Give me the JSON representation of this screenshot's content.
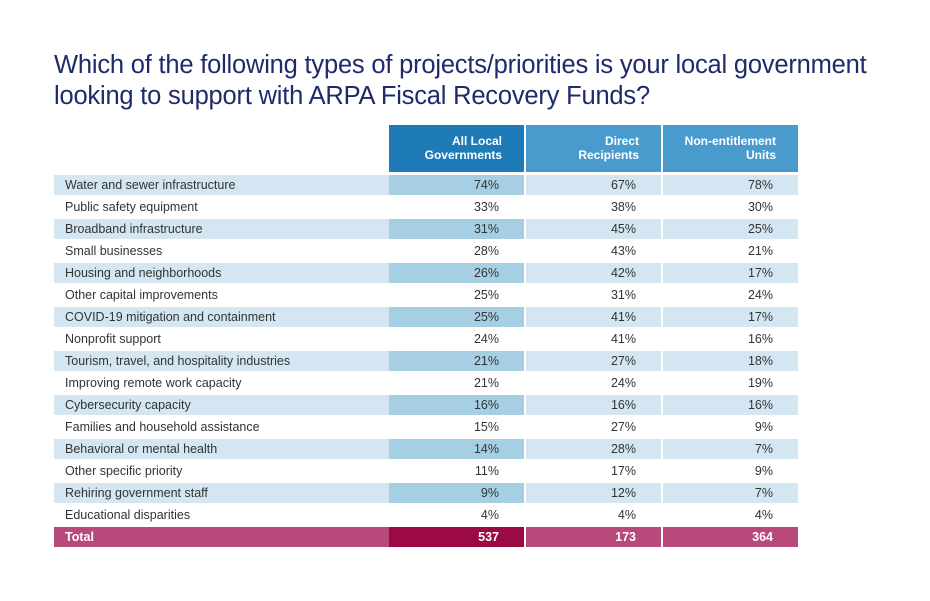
{
  "title": "Which of the following types of projects/priorities is your local government looking to support with ARPA Fiscal Recovery Funds?",
  "table": {
    "columns": [
      "All Local Governments",
      "Direct Recipients",
      "Non-entitlement Units"
    ],
    "columns_lines": [
      [
        "All Local",
        "Governments"
      ],
      [
        "Direct",
        "Recipients"
      ],
      [
        "Non-entitlement",
        "Units"
      ]
    ],
    "rows": [
      {
        "label": "Water and sewer infrastructure",
        "values": [
          "74%",
          "67%",
          "78%"
        ]
      },
      {
        "label": "Public safety equipment",
        "values": [
          "33%",
          "38%",
          "30%"
        ]
      },
      {
        "label": "Broadband infrastructure",
        "values": [
          "31%",
          "45%",
          "25%"
        ]
      },
      {
        "label": "Small businesses",
        "values": [
          "28%",
          "43%",
          "21%"
        ]
      },
      {
        "label": "Housing and neighborhoods",
        "values": [
          "26%",
          "42%",
          "17%"
        ]
      },
      {
        "label": "Other capital improvements",
        "values": [
          "25%",
          "31%",
          "24%"
        ]
      },
      {
        "label": "COVID-19 mitigation and containment",
        "values": [
          "25%",
          "41%",
          "17%"
        ]
      },
      {
        "label": "Nonprofit support",
        "values": [
          "24%",
          "41%",
          "16%"
        ]
      },
      {
        "label": "Tourism, travel, and hospitality industries",
        "values": [
          "21%",
          "27%",
          "18%"
        ]
      },
      {
        "label": "Improving remote work capacity",
        "values": [
          "21%",
          "24%",
          "19%"
        ]
      },
      {
        "label": "Cybersecurity capacity",
        "values": [
          "16%",
          "16%",
          "16%"
        ]
      },
      {
        "label": "Families and household assistance",
        "values": [
          "15%",
          "27%",
          "9%"
        ]
      },
      {
        "label": "Behavioral or mental health",
        "values": [
          "14%",
          "28%",
          "7%"
        ]
      },
      {
        "label": "Other specific priority",
        "values": [
          "11%",
          "17%",
          "9%"
        ]
      },
      {
        "label": "Rehiring government staff",
        "values": [
          "9%",
          "12%",
          "7%"
        ]
      },
      {
        "label": "Educational disparities",
        "values": [
          "4%",
          "4%",
          "4%"
        ]
      }
    ],
    "total": {
      "label": "Total",
      "values": [
        "537",
        "173",
        "364"
      ]
    }
  },
  "colors": {
    "title": "#1f2a6b",
    "header_primary": "#1f7ab8",
    "header_secondary": "#4a9bcd",
    "row_shade": "#d3e6f1",
    "row_shade_primary": "#a7cfe4",
    "total_primary": "#9b0a42",
    "total_secondary": "#b8497b"
  }
}
